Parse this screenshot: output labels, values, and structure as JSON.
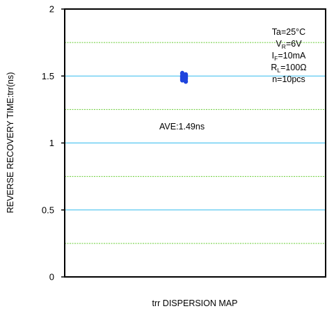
{
  "chart_data": {
    "type": "scatter",
    "title": "",
    "xlabel": "trr DISPERSION MAP",
    "ylabel": "REVERSE RECOVERY TIME:trr(ns)",
    "ylim": [
      0,
      2
    ],
    "y_ticks": [
      {
        "value": 0,
        "label": "0"
      },
      {
        "value": 0.5,
        "label": "0.5"
      },
      {
        "value": 1,
        "label": "1"
      },
      {
        "value": 1.5,
        "label": "1.5"
      },
      {
        "value": 2,
        "label": "2"
      }
    ],
    "major_grid": [
      0.5,
      1,
      1.5
    ],
    "minor_grid": [
      0.25,
      0.75,
      1.25,
      1.75
    ],
    "grid": true,
    "colors": {
      "major_grid": "#33bbee",
      "minor_grid": "#66cc33",
      "points": "#1f44dd"
    },
    "x_center": 0.5,
    "series": [
      {
        "values": [
          1.52,
          1.51,
          1.5,
          1.5,
          1.49,
          1.49,
          1.48,
          1.48,
          1.47,
          1.46
        ]
      }
    ],
    "annotation": "AVE:1.49ns",
    "conditions": [
      {
        "main": "Ta=25°C",
        "sub": "",
        "rest": ""
      },
      {
        "main": "V",
        "sub": "R",
        "rest": "=6V"
      },
      {
        "main": "I",
        "sub": "F",
        "rest": "=10mA"
      },
      {
        "main": "R",
        "sub": "L",
        "rest": "=100Ω"
      },
      {
        "main": "n=10pcs",
        "sub": "",
        "rest": ""
      }
    ]
  }
}
